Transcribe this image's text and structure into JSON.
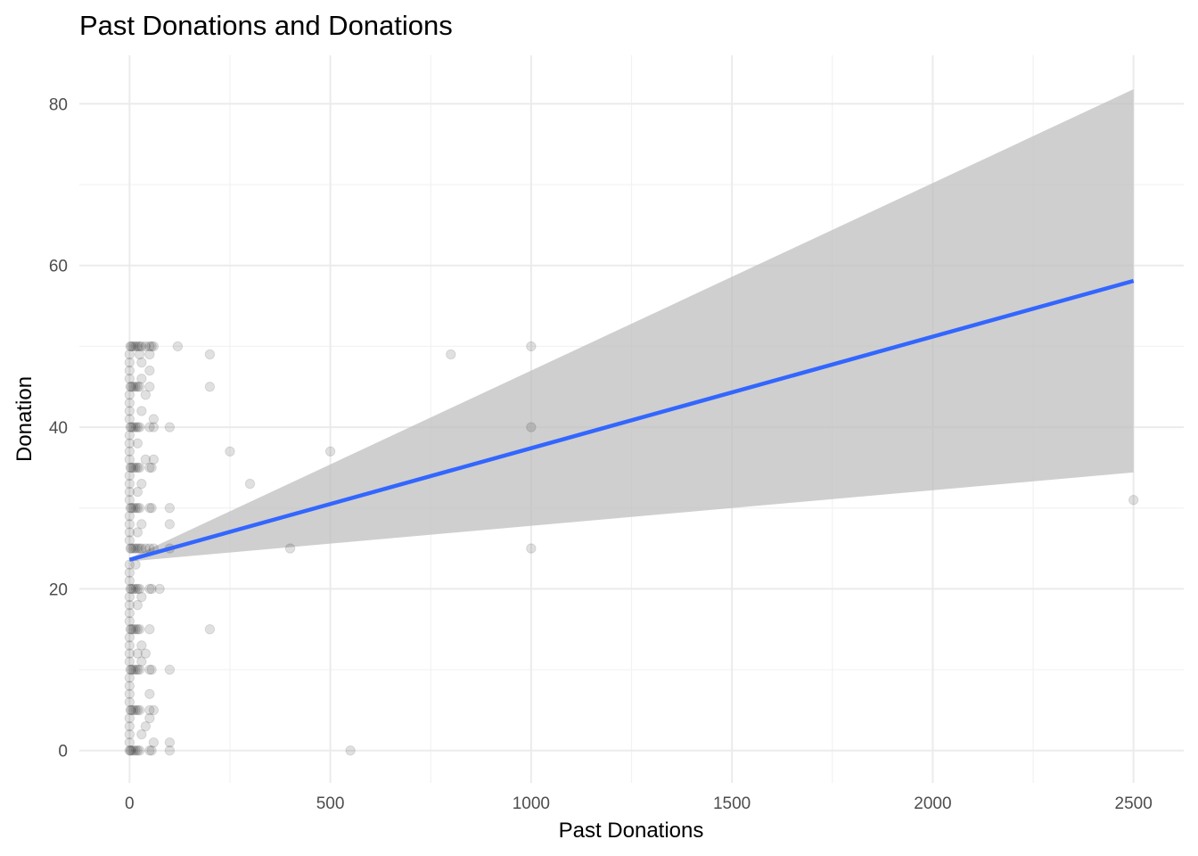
{
  "chart_data": {
    "type": "scatter",
    "title": "Past Donations and Donations",
    "xlabel": "Past Donations",
    "ylabel": "Donation",
    "xlim": [
      -125,
      2625
    ],
    "ylim": [
      -4,
      86
    ],
    "x_ticks": [
      0,
      500,
      1000,
      1500,
      2000,
      2500
    ],
    "y_ticks": [
      0,
      20,
      40,
      60,
      80
    ],
    "x_minor_ticks": [
      250,
      750,
      1250,
      1750,
      2250
    ],
    "y_minor_ticks": [
      10,
      30,
      50,
      70
    ],
    "grid": true,
    "point_color": "#000000",
    "point_alpha": 0.12,
    "points": [
      [
        0,
        0
      ],
      [
        2,
        0
      ],
      [
        5,
        0
      ],
      [
        10,
        0
      ],
      [
        15,
        0
      ],
      [
        20,
        0
      ],
      [
        25,
        0
      ],
      [
        50,
        0
      ],
      [
        55,
        0
      ],
      [
        60,
        1
      ],
      [
        100,
        0
      ],
      [
        100,
        1
      ],
      [
        550,
        0
      ],
      [
        0,
        1
      ],
      [
        0,
        2
      ],
      [
        0,
        3
      ],
      [
        0,
        4
      ],
      [
        2,
        5
      ],
      [
        5,
        5
      ],
      [
        10,
        5
      ],
      [
        15,
        5
      ],
      [
        20,
        5
      ],
      [
        25,
        5
      ],
      [
        50,
        5
      ],
      [
        50,
        4
      ],
      [
        50,
        7
      ],
      [
        30,
        2
      ],
      [
        40,
        3
      ],
      [
        60,
        5
      ],
      [
        0,
        6
      ],
      [
        0,
        7
      ],
      [
        0,
        8
      ],
      [
        0,
        9
      ],
      [
        2,
        10
      ],
      [
        5,
        10
      ],
      [
        10,
        10
      ],
      [
        15,
        10
      ],
      [
        20,
        10
      ],
      [
        25,
        10
      ],
      [
        50,
        10
      ],
      [
        55,
        10
      ],
      [
        100,
        10
      ],
      [
        20,
        12
      ],
      [
        30,
        11
      ],
      [
        0,
        11
      ],
      [
        0,
        12
      ],
      [
        0,
        13
      ],
      [
        0,
        14
      ],
      [
        2,
        15
      ],
      [
        5,
        15
      ],
      [
        10,
        15
      ],
      [
        15,
        15
      ],
      [
        20,
        15
      ],
      [
        25,
        15
      ],
      [
        50,
        15
      ],
      [
        30,
        13
      ],
      [
        40,
        12
      ],
      [
        200,
        15
      ],
      [
        0,
        16
      ],
      [
        0,
        17
      ],
      [
        0,
        18
      ],
      [
        0,
        19
      ],
      [
        2,
        20
      ],
      [
        5,
        20
      ],
      [
        10,
        20
      ],
      [
        15,
        20
      ],
      [
        20,
        20
      ],
      [
        25,
        20
      ],
      [
        50,
        20
      ],
      [
        55,
        20
      ],
      [
        75,
        20
      ],
      [
        20,
        18
      ],
      [
        30,
        19
      ],
      [
        0,
        21
      ],
      [
        0,
        22
      ],
      [
        0,
        23
      ],
      [
        2,
        25
      ],
      [
        5,
        25
      ],
      [
        10,
        25
      ],
      [
        15,
        25
      ],
      [
        20,
        25
      ],
      [
        25,
        25
      ],
      [
        30,
        25
      ],
      [
        40,
        25
      ],
      [
        50,
        25
      ],
      [
        60,
        25
      ],
      [
        100,
        25
      ],
      [
        400,
        25
      ],
      [
        1000,
        25
      ],
      [
        20,
        27
      ],
      [
        15,
        23
      ],
      [
        0,
        26
      ],
      [
        0,
        27
      ],
      [
        0,
        28
      ],
      [
        0,
        29
      ],
      [
        2,
        30
      ],
      [
        5,
        30
      ],
      [
        10,
        30
      ],
      [
        15,
        30
      ],
      [
        20,
        30
      ],
      [
        25,
        30
      ],
      [
        50,
        30
      ],
      [
        55,
        30
      ],
      [
        100,
        30
      ],
      [
        100,
        28
      ],
      [
        30,
        28
      ],
      [
        0,
        31
      ],
      [
        0,
        32
      ],
      [
        0,
        33
      ],
      [
        0,
        34
      ],
      [
        2,
        35
      ],
      [
        5,
        35
      ],
      [
        10,
        35
      ],
      [
        15,
        35
      ],
      [
        20,
        35
      ],
      [
        25,
        35
      ],
      [
        50,
        35
      ],
      [
        55,
        35
      ],
      [
        40,
        36
      ],
      [
        60,
        36
      ],
      [
        30,
        33
      ],
      [
        20,
        32
      ],
      [
        300,
        33
      ],
      [
        2500,
        31
      ],
      [
        0,
        36
      ],
      [
        0,
        37
      ],
      [
        0,
        38
      ],
      [
        0,
        39
      ],
      [
        2,
        40
      ],
      [
        5,
        40
      ],
      [
        10,
        40
      ],
      [
        15,
        40
      ],
      [
        20,
        40
      ],
      [
        25,
        40
      ],
      [
        50,
        40
      ],
      [
        60,
        40
      ],
      [
        100,
        40
      ],
      [
        60,
        41
      ],
      [
        250,
        37
      ],
      [
        500,
        37
      ],
      [
        1000,
        40
      ],
      [
        20,
        38
      ],
      [
        30,
        42
      ],
      [
        0,
        41
      ],
      [
        0,
        42
      ],
      [
        0,
        43
      ],
      [
        0,
        44
      ],
      [
        2,
        45
      ],
      [
        5,
        45
      ],
      [
        10,
        45
      ],
      [
        15,
        45
      ],
      [
        20,
        45
      ],
      [
        25,
        45
      ],
      [
        50,
        45
      ],
      [
        200,
        45
      ],
      [
        30,
        46
      ],
      [
        40,
        44
      ],
      [
        50,
        47
      ],
      [
        0,
        46
      ],
      [
        0,
        47
      ],
      [
        0,
        48
      ],
      [
        0,
        49
      ],
      [
        2,
        50
      ],
      [
        5,
        50
      ],
      [
        10,
        50
      ],
      [
        15,
        50
      ],
      [
        20,
        50
      ],
      [
        25,
        50
      ],
      [
        30,
        50
      ],
      [
        40,
        50
      ],
      [
        50,
        50
      ],
      [
        55,
        50
      ],
      [
        60,
        50
      ],
      [
        120,
        50
      ],
      [
        1000,
        50
      ],
      [
        25,
        49
      ],
      [
        50,
        49
      ],
      [
        200,
        49
      ],
      [
        800,
        49
      ],
      [
        30,
        48
      ]
    ],
    "smooth": {
      "method": "lm",
      "color": "#3366FF",
      "ribbon_color": "#bdbdbd",
      "ribbon_alpha": 0.72,
      "line": {
        "x": [
          0,
          2500
        ],
        "y": [
          23.6,
          58.1
        ]
      },
      "ribbon_upper": {
        "x": [
          0,
          2500
        ],
        "y": [
          23.8,
          81.8
        ]
      },
      "ribbon_lower": {
        "x": [
          0,
          2500
        ],
        "y": [
          23.4,
          34.4
        ]
      }
    }
  }
}
